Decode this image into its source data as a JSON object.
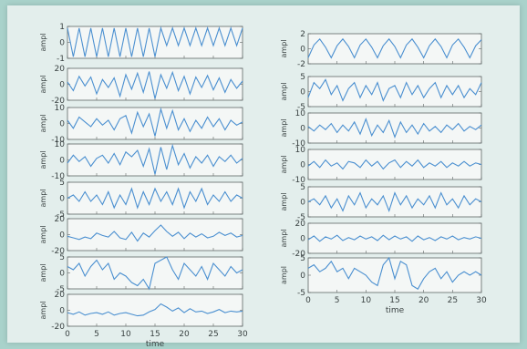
{
  "chart_data": [
    {
      "type": "line",
      "panel": "left-1",
      "ylabel": "ampl",
      "ylim": [
        -1,
        1
      ],
      "yticks": [
        1,
        0,
        -1
      ],
      "xlim": [
        0,
        30
      ],
      "x": [
        0,
        1,
        2,
        3,
        4,
        5,
        6,
        7,
        8,
        9,
        10,
        11,
        12,
        13,
        14,
        15,
        16,
        17,
        18,
        19,
        20,
        21,
        22,
        23,
        24,
        25,
        26,
        27,
        28,
        29,
        30
      ],
      "series": [
        {
          "values": [
            0.9,
            -0.9,
            0.9,
            -0.9,
            0.9,
            -0.9,
            0.9,
            -0.9,
            0.9,
            -0.9,
            0.9,
            -0.9,
            0.9,
            -0.9,
            0.9,
            -0.9,
            0.9,
            -0.2,
            0.9,
            -0.2,
            0.9,
            -0.2,
            0.9,
            -0.2,
            0.9,
            -0.2,
            0.9,
            -0.2,
            0.9,
            -0.2,
            0.9
          ]
        }
      ]
    },
    {
      "type": "line",
      "panel": "left-2",
      "ylabel": "ampl",
      "ylim": [
        -20,
        20
      ],
      "yticks": [
        20,
        0,
        -20
      ],
      "xlim": [
        0,
        30
      ],
      "x": [
        0,
        1,
        2,
        3,
        4,
        5,
        6,
        7,
        8,
        9,
        10,
        11,
        12,
        13,
        14,
        15,
        16,
        17,
        18,
        19,
        20,
        21,
        22,
        23,
        24,
        25,
        26,
        27,
        28,
        29,
        30
      ],
      "series": [
        {
          "values": [
            3,
            -8,
            10,
            -2,
            9,
            -12,
            6,
            -4,
            8,
            -15,
            12,
            -6,
            14,
            -10,
            16,
            -18,
            12,
            -5,
            15,
            -8,
            10,
            -12,
            9,
            -4,
            11,
            -7,
            8,
            -10,
            6,
            -5,
            4
          ]
        }
      ]
    },
    {
      "type": "line",
      "panel": "left-3",
      "ylabel": "ampl",
      "ylim": [
        -10,
        10
      ],
      "yticks": [
        10,
        0,
        -10
      ],
      "xlim": [
        0,
        30
      ],
      "x": [
        0,
        1,
        2,
        3,
        4,
        5,
        6,
        7,
        8,
        9,
        10,
        11,
        12,
        13,
        14,
        15,
        16,
        17,
        18,
        19,
        20,
        21,
        22,
        23,
        24,
        25,
        26,
        27,
        28,
        29,
        30
      ],
      "series": [
        {
          "values": [
            2,
            -3,
            4,
            1,
            -2,
            3,
            -1,
            2,
            -4,
            3,
            5,
            -6,
            7,
            -2,
            6,
            -8,
            9,
            -3,
            8,
            -4,
            3,
            -5,
            2,
            -3,
            4,
            -2,
            3,
            -4,
            2,
            -1,
            1
          ]
        }
      ]
    },
    {
      "type": "line",
      "panel": "left-4",
      "ylabel": "ampl",
      "ylim": [
        -10,
        10
      ],
      "yticks": [
        10,
        0,
        -10
      ],
      "xlim": [
        0,
        30
      ],
      "x": [
        0,
        1,
        2,
        3,
        4,
        5,
        6,
        7,
        8,
        9,
        10,
        11,
        12,
        13,
        14,
        15,
        16,
        17,
        18,
        19,
        20,
        21,
        22,
        23,
        24,
        25,
        26,
        27,
        28,
        29,
        30
      ],
      "series": [
        {
          "values": [
            -2,
            3,
            -1,
            2,
            -4,
            1,
            3,
            -2,
            4,
            -3,
            5,
            2,
            6,
            -4,
            7,
            -9,
            8,
            -6,
            9,
            -3,
            4,
            -5,
            2,
            -2,
            3,
            -4,
            2,
            -1,
            3,
            -2,
            1
          ]
        }
      ]
    },
    {
      "type": "line",
      "panel": "left-5",
      "ylabel": "ampl",
      "ylim": [
        -5,
        5
      ],
      "yticks": [
        5,
        0,
        -5
      ],
      "xlim": [
        0,
        30
      ],
      "x": [
        0,
        1,
        2,
        3,
        4,
        5,
        6,
        7,
        8,
        9,
        10,
        11,
        12,
        13,
        14,
        15,
        16,
        17,
        18,
        19,
        20,
        21,
        22,
        23,
        24,
        25,
        26,
        27,
        28,
        29,
        30
      ],
      "series": [
        {
          "values": [
            0,
            1,
            -1,
            2,
            -1,
            1,
            -2,
            2,
            -3,
            1,
            -2,
            3,
            -3,
            2,
            -2,
            3,
            -1,
            2,
            -2,
            3,
            -3,
            2,
            -1,
            3,
            -2,
            1,
            -1,
            2,
            -1,
            1,
            0
          ]
        }
      ]
    },
    {
      "type": "line",
      "panel": "left-6",
      "ylabel": "ampl",
      "ylim": [
        -20,
        20
      ],
      "yticks": [
        20,
        0,
        -20
      ],
      "xlim": [
        0,
        30
      ],
      "x": [
        0,
        1,
        2,
        3,
        4,
        5,
        6,
        7,
        8,
        9,
        10,
        11,
        12,
        13,
        14,
        15,
        16,
        17,
        18,
        19,
        20,
        21,
        22,
        23,
        24,
        25,
        26,
        27,
        28,
        29,
        30
      ],
      "series": [
        {
          "values": [
            -2,
            -4,
            -6,
            -3,
            -5,
            2,
            -1,
            -3,
            4,
            -4,
            -6,
            3,
            -8,
            2,
            -3,
            5,
            12,
            4,
            -2,
            3,
            -5,
            2,
            -3,
            1,
            -4,
            -2,
            3,
            -1,
            2,
            -3,
            -1
          ]
        }
      ]
    },
    {
      "type": "line",
      "panel": "left-7",
      "ylabel": "ampl",
      "ylim": [
        -5,
        5
      ],
      "yticks": [
        5,
        0,
        -5
      ],
      "xlim": [
        0,
        30
      ],
      "x": [
        0,
        1,
        2,
        3,
        4,
        5,
        6,
        7,
        8,
        9,
        10,
        11,
        12,
        13,
        14,
        15,
        16,
        17,
        18,
        19,
        20,
        21,
        22,
        23,
        24,
        25,
        26,
        27,
        28,
        29,
        30
      ],
      "series": [
        {
          "values": [
            2,
            1,
            3,
            -1,
            2,
            4,
            1,
            3,
            -2,
            0,
            -1,
            -3,
            -4,
            -2,
            -6,
            3,
            4,
            5,
            1,
            -2,
            3,
            1,
            -1,
            2,
            -2,
            3,
            1,
            -1,
            2,
            0,
            1
          ]
        }
      ]
    },
    {
      "type": "line",
      "panel": "left-8",
      "ylabel": "ampl",
      "ylim": [
        -20,
        20
      ],
      "yticks": [
        20,
        0,
        -20
      ],
      "xlim": [
        0,
        30
      ],
      "xticks": [
        0,
        5,
        10,
        15,
        20,
        25,
        30
      ],
      "xlabel": "time",
      "x": [
        0,
        1,
        2,
        3,
        4,
        5,
        6,
        7,
        8,
        9,
        10,
        11,
        12,
        13,
        14,
        15,
        16,
        17,
        18,
        19,
        20,
        21,
        22,
        23,
        24,
        25,
        26,
        27,
        28,
        29,
        30
      ],
      "series": [
        {
          "values": [
            -3,
            -5,
            -2,
            -6,
            -4,
            -3,
            -5,
            -2,
            -6,
            -4,
            -3,
            -5,
            -7,
            -6,
            -2,
            1,
            8,
            4,
            -1,
            3,
            -3,
            2,
            -2,
            -1,
            -4,
            -2,
            1,
            -3,
            -1,
            -2,
            -1
          ]
        }
      ]
    },
    {
      "type": "line",
      "panel": "right-1",
      "ylabel": "ampl",
      "ylim": [
        -2,
        2
      ],
      "yticks": [
        2,
        0,
        -2
      ],
      "xlim": [
        0,
        30
      ],
      "x": [
        0,
        1,
        2,
        3,
        4,
        5,
        6,
        7,
        8,
        9,
        10,
        11,
        12,
        13,
        14,
        15,
        16,
        17,
        18,
        19,
        20,
        21,
        22,
        23,
        24,
        25,
        26,
        27,
        28,
        29,
        30
      ],
      "series": [
        {
          "values": [
            -1.2,
            0.5,
            1.3,
            0.2,
            -1.2,
            0.4,
            1.3,
            0.3,
            -1.2,
            0.5,
            1.3,
            0.2,
            -1.2,
            0.4,
            1.3,
            0.3,
            -1.2,
            0.5,
            1.3,
            0.2,
            -1.2,
            0.4,
            1.3,
            0.3,
            -1.2,
            0.5,
            1.3,
            0.2,
            -1.2,
            0.4,
            1.2
          ]
        }
      ]
    },
    {
      "type": "line",
      "panel": "right-2",
      "ylabel": "ampl",
      "ylim": [
        -5,
        5
      ],
      "yticks": [
        5,
        0,
        -5
      ],
      "xlim": [
        0,
        30
      ],
      "x": [
        0,
        1,
        2,
        3,
        4,
        5,
        6,
        7,
        8,
        9,
        10,
        11,
        12,
        13,
        14,
        15,
        16,
        17,
        18,
        19,
        20,
        21,
        22,
        23,
        24,
        25,
        26,
        27,
        28,
        29,
        30
      ],
      "series": [
        {
          "values": [
            -2,
            3,
            1,
            4,
            -1,
            2,
            -3,
            1,
            3,
            -2,
            2,
            -1,
            3,
            -3,
            1,
            2,
            -2,
            3,
            -1,
            2,
            -2,
            1,
            3,
            -2,
            2,
            -1,
            2,
            -2,
            1,
            -1,
            3
          ]
        }
      ]
    },
    {
      "type": "line",
      "panel": "right-3",
      "ylabel": "ampl",
      "ylim": [
        -10,
        10
      ],
      "yticks": [
        10,
        0,
        -10
      ],
      "xlim": [
        0,
        30
      ],
      "x": [
        0,
        1,
        2,
        3,
        4,
        5,
        6,
        7,
        8,
        9,
        10,
        11,
        12,
        13,
        14,
        15,
        16,
        17,
        18,
        19,
        20,
        21,
        22,
        23,
        24,
        25,
        26,
        27,
        28,
        29,
        30
      ],
      "series": [
        {
          "values": [
            1,
            -2,
            2,
            -1,
            3,
            -3,
            2,
            -2,
            4,
            -4,
            6,
            -5,
            2,
            -3,
            5,
            -6,
            4,
            -3,
            2,
            -4,
            3,
            -2,
            1,
            -3,
            2,
            -1,
            3,
            -2,
            1,
            -1,
            2
          ]
        }
      ]
    },
    {
      "type": "line",
      "panel": "right-4",
      "ylabel": "ampl",
      "ylim": [
        -10,
        10
      ],
      "yticks": [
        10,
        0,
        -10
      ],
      "xlim": [
        0,
        30
      ],
      "x": [
        0,
        1,
        2,
        3,
        4,
        5,
        6,
        7,
        8,
        9,
        10,
        11,
        12,
        13,
        14,
        15,
        16,
        17,
        18,
        19,
        20,
        21,
        22,
        23,
        24,
        25,
        26,
        27,
        28,
        29,
        30
      ],
      "series": [
        {
          "values": [
            -1,
            2,
            -2,
            3,
            -1,
            1,
            -3,
            2,
            1,
            -2,
            3,
            -1,
            2,
            -3,
            1,
            3,
            -2,
            2,
            -1,
            3,
            -2,
            1,
            -1,
            2,
            -2,
            1,
            -1,
            2,
            -1,
            1,
            0
          ]
        }
      ]
    },
    {
      "type": "line",
      "panel": "right-5",
      "ylabel": "ampl",
      "ylim": [
        -5,
        5
      ],
      "yticks": [
        5,
        0,
        -5
      ],
      "xlim": [
        0,
        30
      ],
      "x": [
        0,
        1,
        2,
        3,
        4,
        5,
        6,
        7,
        8,
        9,
        10,
        11,
        12,
        13,
        14,
        15,
        16,
        17,
        18,
        19,
        20,
        21,
        22,
        23,
        24,
        25,
        26,
        27,
        28,
        29,
        30
      ],
      "series": [
        {
          "values": [
            0,
            1,
            -1,
            2,
            -2,
            1,
            -3,
            2,
            -1,
            3,
            -2,
            1,
            -1,
            2,
            -3,
            3,
            -1,
            2,
            -2,
            1,
            -1,
            2,
            -2,
            3,
            -1,
            1,
            -2,
            2,
            -1,
            1,
            0
          ]
        }
      ]
    },
    {
      "type": "line",
      "panel": "right-6",
      "ylabel": "ampl",
      "ylim": [
        -20,
        20
      ],
      "yticks": [
        20,
        0,
        -20
      ],
      "xlim": [
        0,
        30
      ],
      "x": [
        0,
        1,
        2,
        3,
        4,
        5,
        6,
        7,
        8,
        9,
        10,
        11,
        12,
        13,
        14,
        15,
        16,
        17,
        18,
        19,
        20,
        21,
        22,
        23,
        24,
        25,
        26,
        27,
        28,
        29,
        30
      ],
      "series": [
        {
          "values": [
            -2,
            3,
            -4,
            2,
            -1,
            4,
            -3,
            1,
            -2,
            3,
            -1,
            2,
            -3,
            4,
            -2,
            3,
            -1,
            2,
            -4,
            3,
            -2,
            1,
            -3,
            2,
            -1,
            3,
            -2,
            1,
            -1,
            2,
            0
          ]
        }
      ]
    },
    {
      "type": "line",
      "panel": "right-7",
      "ylabel": "ampl",
      "ylim": [
        -5,
        5
      ],
      "yticks": [
        5,
        0,
        -5
      ],
      "xlim": [
        0,
        30
      ],
      "xticks": [
        0,
        5,
        10,
        15,
        20,
        25,
        30
      ],
      "xlabel": "time",
      "x": [
        0,
        1,
        2,
        3,
        4,
        5,
        6,
        7,
        8,
        9,
        10,
        11,
        12,
        13,
        14,
        15,
        16,
        17,
        18,
        19,
        20,
        21,
        22,
        23,
        24,
        25,
        26,
        27,
        28,
        29,
        30
      ],
      "series": [
        {
          "values": [
            2,
            3,
            1,
            2,
            4,
            1,
            2,
            -1,
            2,
            1,
            0,
            -2,
            -3,
            3,
            5,
            -1,
            4,
            3,
            -3,
            -4,
            -1,
            1,
            2,
            -1,
            1,
            -2,
            0,
            1,
            0,
            1,
            0
          ]
        }
      ]
    }
  ],
  "colors": {
    "line": "#4a8fd0",
    "axes": "#5f6666",
    "panel": "#f4f7f6",
    "paper": "#e3eeec",
    "background": "#a9d2cb"
  }
}
